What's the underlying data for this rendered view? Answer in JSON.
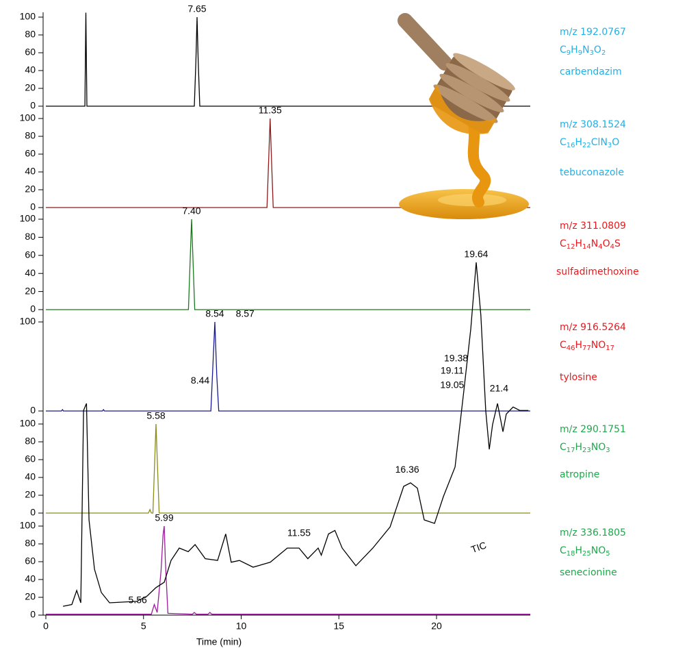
{
  "chart_data": [
    {
      "type": "line",
      "x": [
        0,
        2.0,
        2.05,
        2.1,
        7.6,
        7.68,
        7.74,
        7.8,
        7.88,
        24.8
      ],
      "series": [
        {
          "name": "carbendazim",
          "mz": "m/z 192.0767",
          "formula": "C9H9N3O2",
          "color": "#000000",
          "label_color": "#1fb1e8",
          "values": [
            0,
            0,
            105,
            0,
            0,
            50,
            100,
            50,
            0,
            0
          ]
        }
      ],
      "xlim": [
        0,
        24.8
      ],
      "ylim": [
        0,
        100
      ],
      "yticks": [
        0,
        20,
        40,
        60,
        80,
        100
      ],
      "annotations": [
        {
          "x": 7.74,
          "y": 100,
          "label": "7.65"
        }
      ]
    },
    {
      "type": "line",
      "x": [
        0,
        11.32,
        11.4,
        11.48,
        11.56,
        11.64,
        24.8
      ],
      "series": [
        {
          "name": "tebuconazole",
          "mz": "m/z 308.1524",
          "formula": "C16H22ClN3O",
          "color": "#8b1a1a",
          "label_color": "#1fb1e8",
          "values": [
            0,
            0,
            50,
            100,
            50,
            0,
            0
          ]
        }
      ],
      "xlim": [
        0,
        24.8
      ],
      "ylim": [
        0,
        100
      ],
      "yticks": [
        0,
        20,
        40,
        60,
        80,
        100
      ],
      "annotations": [
        {
          "x": 11.48,
          "y": 100,
          "label": "11.35"
        }
      ]
    },
    {
      "type": "line",
      "x": [
        0,
        7.3,
        7.38,
        7.46,
        7.54,
        7.62,
        24.8
      ],
      "series": [
        {
          "name": "sulfadimethoxine",
          "mz": "m/z 311.0809",
          "formula": "C12H14N4O4S",
          "color": "#1a7a1a",
          "label_color": "#e8191e",
          "values": [
            0,
            0,
            50,
            100,
            50,
            0,
            0
          ]
        }
      ],
      "xlim": [
        0,
        24.8
      ],
      "ylim": [
        0,
        100
      ],
      "yticks": [
        0,
        20,
        40,
        60,
        80,
        100
      ],
      "annotations": [
        {
          "x": 7.46,
          "y": 100,
          "label": "7.40"
        }
      ]
    },
    {
      "type": "line",
      "x": [
        0,
        0.8,
        0.85,
        0.9,
        2.9,
        2.95,
        3.0,
        8.45,
        8.55,
        8.65,
        8.75,
        8.85,
        24.8
      ],
      "series": [
        {
          "name": "tylosine",
          "mz": "m/z 916.5264",
          "formula": "C46H77NO17",
          "color": "#1a1a8b",
          "label_color": "#e8191e",
          "values": [
            0,
            0,
            1.5,
            0,
            0,
            1.5,
            0,
            0,
            50,
            100,
            40,
            0,
            0
          ]
        }
      ],
      "xlim": [
        0,
        24.8
      ],
      "ylim": [
        0,
        100
      ],
      "yticks": [
        0,
        100
      ],
      "annotations": [
        {
          "x": 8.65,
          "y": 100,
          "label": "8.54"
        },
        {
          "x": 10.2,
          "y": 100,
          "label": "8.57"
        },
        {
          "x": 7.9,
          "y": 25,
          "label": "8.44"
        }
      ]
    },
    {
      "type": "line",
      "x": [
        0,
        5.25,
        5.33,
        5.4,
        5.48,
        5.56,
        5.64,
        5.72,
        5.8,
        24.8
      ],
      "series": [
        {
          "name": "atropine",
          "mz": "m/z 290.1751",
          "formula": "C17H23NO3",
          "color": "#8b8b1a",
          "label_color": "#1ea84b",
          "values": [
            0,
            0,
            4,
            0,
            0,
            50,
            100,
            50,
            0,
            0
          ]
        }
      ],
      "xlim": [
        0,
        24.8
      ],
      "ylim": [
        0,
        100
      ],
      "yticks": [
        0,
        20,
        40,
        60,
        80,
        100
      ],
      "annotations": [
        {
          "x": 5.64,
          "y": 100,
          "label": "5.58"
        }
      ]
    },
    {
      "type": "line",
      "x": [
        0,
        5.4,
        5.55,
        5.7,
        5.9,
        6.0,
        6.06,
        6.12,
        6.25,
        7.5,
        7.6,
        7.7,
        8.3,
        8.4,
        8.5,
        24.8
      ],
      "series": [
        {
          "name": "senecionine",
          "mz": "m/z 336.1805",
          "formula": "C18H25NO5",
          "color": "#9b1a9b",
          "label_color": "#1ea84b",
          "values": [
            1,
            1,
            12,
            3,
            50,
            90,
            100,
            60,
            2,
            1,
            3,
            1,
            1,
            3,
            1,
            1
          ]
        }
      ],
      "xlim": [
        0,
        24.8
      ],
      "ylim": [
        0,
        100
      ],
      "yticks": [
        0,
        20,
        40,
        60,
        80,
        100
      ],
      "xticks": [
        0,
        5,
        10,
        15,
        20
      ],
      "xlabel": "Time (min)",
      "annotations": [
        {
          "x": 6.06,
          "y": 100,
          "label": "5.99"
        },
        {
          "x": 4.7,
          "y": 8,
          "label": "5.56"
        }
      ]
    },
    {
      "type": "line",
      "title": "TIC",
      "x": [
        0.88,
        1.33,
        1.58,
        1.79,
        1.93,
        2.08,
        2.21,
        2.49,
        2.84,
        3.26,
        4.66,
        5.18,
        5.64,
        6.06,
        6.41,
        6.83,
        7.29,
        7.64,
        8.16,
        8.79,
        9.21,
        9.49,
        9.91,
        10.61,
        11.49,
        12.36,
        12.96,
        13.41,
        13.94,
        14.1,
        14.47,
        14.8,
        15.17,
        15.87,
        16.74,
        17.62,
        18.32,
        18.67,
        19.02,
        19.37,
        19.9,
        20.35,
        20.95,
        21.4,
        21.75,
        22.03,
        22.27,
        22.52,
        22.7,
        22.87,
        23.12,
        23.4,
        23.57,
        23.92,
        24.27,
        24.7
      ],
      "series": [
        {
          "color": "#000000",
          "values": [
            2.5,
            3,
            7,
            3.5,
            58,
            60,
            27,
            13,
            6.4,
            3.5,
            3.9,
            5.4,
            7.8,
            9.3,
            15.5,
            19,
            18,
            20,
            16,
            15.5,
            23,
            15,
            15.5,
            13.6,
            15,
            19,
            19,
            16,
            19,
            17,
            23,
            24,
            19,
            14,
            19,
            25,
            36.5,
            37.5,
            36,
            27,
            26,
            33.6,
            42,
            63.7,
            81,
            100,
            85,
            58,
            47,
            54,
            60,
            52,
            57,
            59,
            58,
            58
          ]
        }
      ],
      "xlim": [
        0,
        24.8
      ],
      "ylim": [
        0,
        100
      ],
      "annotations": [
        {
          "x": 12.96,
          "y": 21,
          "label": "11.55"
        },
        {
          "x": 18.5,
          "y": 39,
          "label": "16.36"
        },
        {
          "x": 22.03,
          "y": 100,
          "label": "19.64"
        },
        {
          "x": 21.0,
          "y": 70.5,
          "label": "19.38"
        },
        {
          "x": 20.8,
          "y": 67,
          "label": "19.11"
        },
        {
          "x": 20.8,
          "y": 63,
          "label": "19.05"
        },
        {
          "x": 23.2,
          "y": 62,
          "label": "21.4"
        }
      ]
    }
  ]
}
